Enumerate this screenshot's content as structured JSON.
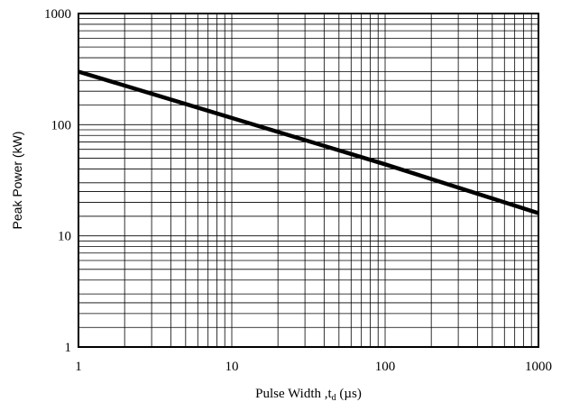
{
  "chart_data": {
    "type": "line",
    "title": "",
    "xlabel": "Pulse Width ,t",
    "xlabel_subscript": "d",
    "xlabel_suffix": " (µs)",
    "ylabel": "Peak Power (kW)",
    "x_scale": "log",
    "y_scale": "log",
    "xlim": [
      1,
      1000
    ],
    "ylim": [
      1,
      1000
    ],
    "x_ticks": [
      1,
      10,
      100,
      1000
    ],
    "x_tick_labels": [
      "1",
      "10",
      "100",
      "1000"
    ],
    "y_ticks": [
      1,
      10,
      100,
      1000
    ],
    "y_tick_labels": [
      "1",
      "10",
      "100",
      "1000"
    ],
    "grid": "on (major and minor)",
    "line_color": "#000000",
    "series": [
      {
        "x": [
          1,
          10,
          100,
          1000
        ],
        "y": [
          300,
          115,
          44,
          16
        ]
      }
    ]
  }
}
